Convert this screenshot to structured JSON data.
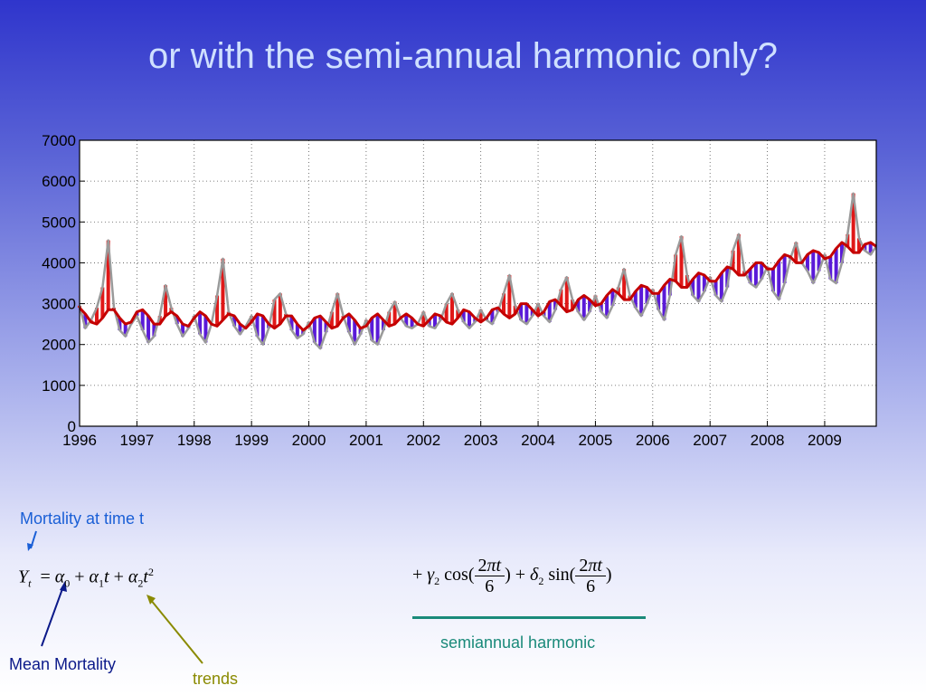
{
  "slide": {
    "title": "or with the semi-annual harmonic only?"
  },
  "annotations": {
    "mortality_at_time": "Mortality at time t",
    "mean_mortality": "Mean Mortality",
    "trends": "trends",
    "semiannual_harmonic": "semiannual harmonic"
  },
  "colors": {
    "observed": "#9a9a9a",
    "above_fit": "#e01818",
    "below_fit": "#5a1ad8",
    "fit": "#c40000",
    "mortality_arrow": "#1a5fd6",
    "mean_arrow": "#0c1a8a",
    "trends_arrow": "#8a8a00",
    "semiannual": "#1a8a7a"
  },
  "chart_data": {
    "type": "line",
    "title": "",
    "xlabel": "",
    "ylabel": "",
    "xlim": [
      1996,
      2009.9
    ],
    "ylim": [
      0,
      7000
    ],
    "grid": true,
    "yticks": [
      "0",
      "1000",
      "2000",
      "3000",
      "4000",
      "5000",
      "6000",
      "7000"
    ],
    "xticks": [
      "1996",
      "1997",
      "1998",
      "1999",
      "2000",
      "2001",
      "2002",
      "2003",
      "2004",
      "2005",
      "2006",
      "2007",
      "2008",
      "2009"
    ],
    "series": [
      {
        "role": "observed",
        "x": [
          1996.0,
          1996.1,
          1996.2,
          1996.3,
          1996.4,
          1996.5,
          1996.6,
          1996.7,
          1996.8,
          1996.9,
          1997.0,
          1997.1,
          1997.2,
          1997.3,
          1997.4,
          1997.5,
          1997.6,
          1997.7,
          1997.8,
          1997.9,
          1998.0,
          1998.1,
          1998.2,
          1998.3,
          1998.4,
          1998.5,
          1998.6,
          1998.7,
          1998.8,
          1998.9,
          1999.0,
          1999.1,
          1999.2,
          1999.3,
          1999.4,
          1999.5,
          1999.6,
          1999.7,
          1999.8,
          1999.9,
          2000.0,
          2000.1,
          2000.2,
          2000.3,
          2000.4,
          2000.5,
          2000.6,
          2000.7,
          2000.8,
          2000.9,
          2001.0,
          2001.1,
          2001.2,
          2001.3,
          2001.4,
          2001.5,
          2001.6,
          2001.7,
          2001.8,
          2001.9,
          2002.0,
          2002.1,
          2002.2,
          2002.3,
          2002.4,
          2002.5,
          2002.6,
          2002.7,
          2002.8,
          2002.9,
          2003.0,
          2003.1,
          2003.2,
          2003.3,
          2003.4,
          2003.5,
          2003.6,
          2003.7,
          2003.8,
          2003.9,
          2004.0,
          2004.1,
          2004.2,
          2004.3,
          2004.4,
          2004.5,
          2004.6,
          2004.7,
          2004.8,
          2004.9,
          2005.0,
          2005.1,
          2005.2,
          2005.3,
          2005.4,
          2005.5,
          2005.6,
          2005.7,
          2005.8,
          2005.9,
          2006.0,
          2006.1,
          2006.2,
          2006.3,
          2006.4,
          2006.5,
          2006.6,
          2006.7,
          2006.8,
          2006.9,
          2007.0,
          2007.1,
          2007.2,
          2007.3,
          2007.4,
          2007.5,
          2007.6,
          2007.7,
          2007.8,
          2007.9,
          2008.0,
          2008.1,
          2008.2,
          2008.3,
          2008.4,
          2008.5,
          2008.6,
          2008.7,
          2008.8,
          2008.9,
          2009.0,
          2009.1,
          2009.2,
          2009.3,
          2009.4,
          2009.5,
          2009.6,
          2009.7,
          2009.8,
          2009.9
        ],
        "y": [
          2950,
          2400,
          2600,
          2900,
          3400,
          4550,
          2900,
          2350,
          2200,
          2500,
          2700,
          2350,
          2050,
          2200,
          2700,
          3450,
          2900,
          2500,
          2200,
          2400,
          2700,
          2250,
          2050,
          2500,
          3200,
          4100,
          2800,
          2450,
          2250,
          2450,
          2700,
          2200,
          2000,
          2400,
          3100,
          3250,
          2750,
          2350,
          2150,
          2250,
          2550,
          2050,
          1900,
          2300,
          2800,
          3250,
          2700,
          2300,
          2000,
          2250,
          2600,
          2100,
          2000,
          2350,
          2800,
          3050,
          2650,
          2450,
          2400,
          2500,
          2800,
          2450,
          2400,
          2600,
          3000,
          3250,
          2850,
          2550,
          2400,
          2550,
          2850,
          2600,
          2500,
          2800,
          3250,
          3700,
          2950,
          2600,
          2500,
          2700,
          3000,
          2700,
          2550,
          2850,
          3350,
          3650,
          3100,
          2800,
          2600,
          2800,
          3200,
          2800,
          2650,
          2950,
          3400,
          3850,
          3200,
          2900,
          2700,
          3000,
          3350,
          2850,
          2600,
          3200,
          4200,
          4650,
          3700,
          3200,
          3050,
          3300,
          3650,
          3200,
          3050,
          3400,
          4300,
          4700,
          3800,
          3500,
          3400,
          3600,
          3900,
          3300,
          3100,
          3500,
          4100,
          4500,
          4000,
          3800,
          3500,
          3800,
          4200,
          3600,
          3500,
          4000,
          4700,
          5700,
          4600,
          4300,
          4200,
          4400
        ]
      },
      {
        "role": "fit",
        "x": [
          1996.0,
          1996.1,
          1996.2,
          1996.3,
          1996.4,
          1996.5,
          1996.6,
          1996.7,
          1996.8,
          1996.9,
          1997.0,
          1997.1,
          1997.2,
          1997.3,
          1997.4,
          1997.5,
          1997.6,
          1997.7,
          1997.8,
          1997.9,
          1998.0,
          1998.1,
          1998.2,
          1998.3,
          1998.4,
          1998.5,
          1998.6,
          1998.7,
          1998.8,
          1998.9,
          1999.0,
          1999.1,
          1999.2,
          1999.3,
          1999.4,
          1999.5,
          1999.6,
          1999.7,
          1999.8,
          1999.9,
          2000.0,
          2000.1,
          2000.2,
          2000.3,
          2000.4,
          2000.5,
          2000.6,
          2000.7,
          2000.8,
          2000.9,
          2001.0,
          2001.1,
          2001.2,
          2001.3,
          2001.4,
          2001.5,
          2001.6,
          2001.7,
          2001.8,
          2001.9,
          2002.0,
          2002.1,
          2002.2,
          2002.3,
          2002.4,
          2002.5,
          2002.6,
          2002.7,
          2002.8,
          2002.9,
          2003.0,
          2003.1,
          2003.2,
          2003.3,
          2003.4,
          2003.5,
          2003.6,
          2003.7,
          2003.8,
          2003.9,
          2004.0,
          2004.1,
          2004.2,
          2004.3,
          2004.4,
          2004.5,
          2004.6,
          2004.7,
          2004.8,
          2004.9,
          2005.0,
          2005.1,
          2005.2,
          2005.3,
          2005.4,
          2005.5,
          2005.6,
          2005.7,
          2005.8,
          2005.9,
          2006.0,
          2006.1,
          2006.2,
          2006.3,
          2006.4,
          2006.5,
          2006.6,
          2006.7,
          2006.8,
          2006.9,
          2007.0,
          2007.1,
          2007.2,
          2007.3,
          2007.4,
          2007.5,
          2007.6,
          2007.7,
          2007.8,
          2007.9,
          2008.0,
          2008.1,
          2008.2,
          2008.3,
          2008.4,
          2008.5,
          2008.6,
          2008.7,
          2008.8,
          2008.9,
          2009.0,
          2009.1,
          2009.2,
          2009.3,
          2009.4,
          2009.5,
          2009.6,
          2009.7,
          2009.8,
          2009.9
        ],
        "y": [
          2900,
          2750,
          2550,
          2500,
          2650,
          2850,
          2850,
          2650,
          2500,
          2550,
          2800,
          2850,
          2700,
          2500,
          2500,
          2700,
          2800,
          2700,
          2500,
          2450,
          2650,
          2800,
          2700,
          2500,
          2450,
          2600,
          2750,
          2700,
          2500,
          2400,
          2550,
          2750,
          2700,
          2500,
          2400,
          2500,
          2700,
          2700,
          2500,
          2350,
          2450,
          2650,
          2700,
          2550,
          2400,
          2450,
          2650,
          2750,
          2600,
          2400,
          2450,
          2650,
          2750,
          2600,
          2450,
          2500,
          2650,
          2750,
          2650,
          2500,
          2450,
          2600,
          2750,
          2700,
          2550,
          2500,
          2650,
          2850,
          2800,
          2650,
          2550,
          2650,
          2850,
          2900,
          2750,
          2650,
          2750,
          3000,
          3000,
          2850,
          2700,
          2800,
          3050,
          3100,
          2950,
          2800,
          2850,
          3100,
          3200,
          3100,
          2950,
          3000,
          3200,
          3350,
          3250,
          3100,
          3100,
          3300,
          3450,
          3400,
          3250,
          3250,
          3450,
          3600,
          3550,
          3400,
          3400,
          3600,
          3750,
          3700,
          3550,
          3550,
          3750,
          3900,
          3850,
          3700,
          3700,
          3850,
          4000,
          4000,
          3850,
          3850,
          4050,
          4200,
          4150,
          4000,
          4000,
          4200,
          4300,
          4250,
          4100,
          4150,
          4350,
          4500,
          4400,
          4250,
          4250,
          4450,
          4500,
          4400
        ]
      }
    ]
  }
}
